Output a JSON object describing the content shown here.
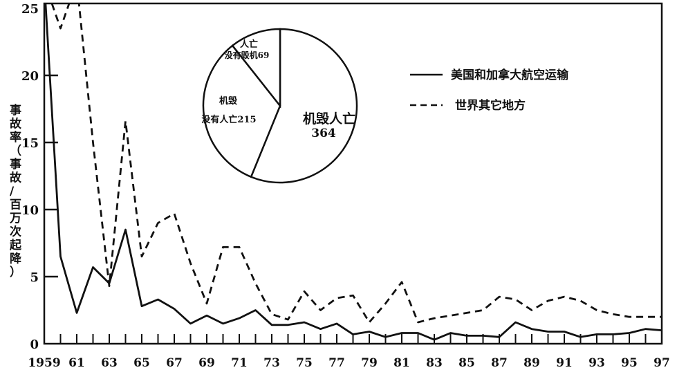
{
  "chart_data": {
    "type": "line",
    "title": "",
    "xlabel": "",
    "ylabel": "事故率（事故/百万次起降）",
    "xlim": [
      1959,
      1997
    ],
    "ylim": [
      0,
      25
    ],
    "grid": false,
    "legend_position": "top-right",
    "x_tick_labels": [
      "1959",
      "61",
      "63",
      "65",
      "67",
      "69",
      "71",
      "73",
      "75",
      "77",
      "79",
      "81",
      "83",
      "85",
      "87",
      "89",
      "91",
      "93",
      "95",
      "97"
    ],
    "y_tick_labels": [
      "0",
      "5",
      "10",
      "15",
      "20",
      "25"
    ],
    "y_ticks": [
      0,
      5,
      10,
      15,
      20,
      25
    ],
    "x": [
      1959,
      1960,
      1961,
      1962,
      1963,
      1964,
      1965,
      1966,
      1967,
      1968,
      1969,
      1970,
      1971,
      1972,
      1973,
      1974,
      1975,
      1976,
      1977,
      1978,
      1979,
      1980,
      1981,
      1982,
      1983,
      1984,
      1985,
      1986,
      1987,
      1988,
      1989,
      1990,
      1991,
      1992,
      1993,
      1994,
      1995,
      1996,
      1997
    ],
    "series": [
      {
        "name": "美国和加拿大航空运输",
        "style": "solid",
        "values": [
          27,
          6.5,
          2.3,
          5.7,
          4.5,
          8.5,
          2.8,
          3.3,
          2.6,
          1.5,
          2.1,
          1.5,
          1.9,
          2.5,
          1.4,
          1.4,
          1.6,
          1.1,
          1.5,
          0.7,
          0.9,
          0.5,
          0.8,
          0.8,
          0.3,
          0.8,
          0.6,
          0.6,
          0.5,
          1.6,
          1.1,
          0.9,
          0.9,
          0.5,
          0.7,
          0.7,
          0.8,
          1.1,
          1.0
        ]
      },
      {
        "name": "世界其它地方",
        "style": "dashed",
        "values": [
          27,
          23.5,
          27,
          15,
          4.3,
          16.6,
          6.5,
          9,
          9.7,
          6,
          3,
          7.2,
          7.2,
          4.5,
          2.2,
          1.8,
          3.9,
          2.5,
          3.4,
          3.6,
          1.6,
          3,
          4.6,
          1.6,
          1.9,
          2.1,
          2.3,
          2.5,
          3.5,
          3.3,
          2.5,
          3.2,
          3.5,
          3.2,
          2.5,
          2.2,
          2,
          2,
          2
        ]
      }
    ],
    "inset_pie": {
      "type": "pie",
      "slices": [
        {
          "label_line1": "机毁人亡",
          "label_line2": "364",
          "value": 364
        },
        {
          "label_line1": "机毁",
          "label_line2": "没有人亡215",
          "value": 215
        },
        {
          "label_line1": "人亡",
          "label_line2": "没有毁机69",
          "value": 69
        }
      ]
    },
    "colors": {
      "line": "#111111",
      "background": "#ffffff"
    }
  }
}
